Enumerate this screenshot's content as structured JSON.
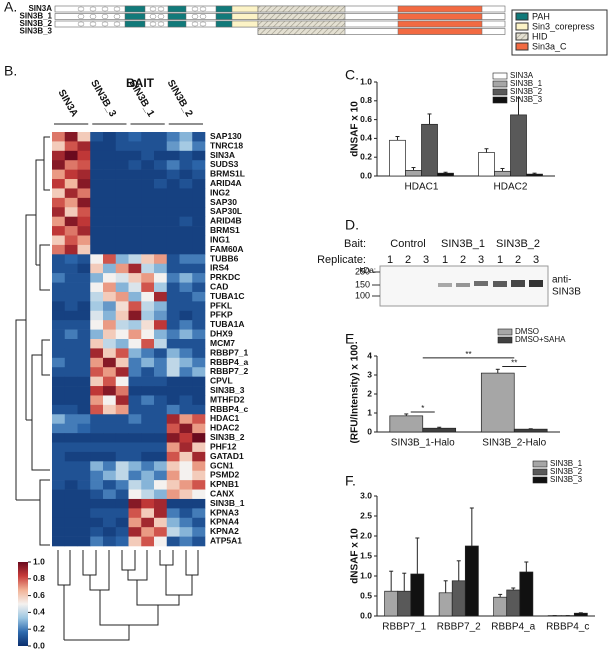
{
  "panel_labels": [
    "A.",
    "B.",
    "C.",
    "D.",
    "E.",
    "F."
  ],
  "domain_diagram": {
    "proteins": [
      "SIN3A",
      "SIN3B_1",
      "SIN3B_2",
      "SIN3B_3"
    ],
    "legend": [
      "PAH",
      "Sin3_corepress",
      "HID",
      "Sin3a_C"
    ]
  },
  "blot": {
    "bait_label": "Bait:",
    "baits": [
      "Control",
      "SIN3B_1",
      "SIN3B_2"
    ],
    "replicate_label": "Replicate:",
    "replicates": [
      1,
      2,
      3
    ],
    "kda_label": "kDa:",
    "markers": [
      250,
      150,
      100
    ],
    "antibody": [
      "anti-",
      "SIN3B"
    ]
  },
  "chart_data": [
    {
      "type": "heatmap",
      "title": "BAIT",
      "column_groups": [
        "SIN3A",
        "SIN3B_3",
        "SIN3B_1",
        "SIN3B_2"
      ],
      "rows": [
        "SAP130",
        "TNRC18",
        "SIN3A",
        "SUDS3",
        "BRMS1L",
        "ARID4A",
        "ING2",
        "SAP30",
        "SAP30L",
        "ARID4B",
        "BRMS1",
        "ING1",
        "FAM60A",
        "TUBB6",
        "IRS4",
        "PRKDC",
        "CAD",
        "TUBA1C",
        "PFKL",
        "PFKP",
        "TUBA1A",
        "DHX9",
        "MCM7",
        "RBBP7_1",
        "RBBP4_a",
        "RBBP7_2",
        "CPVL",
        "SIN3B_3",
        "MTHFD2",
        "RBBP4_c",
        "HDAC1",
        "HDAC2",
        "SIN3B_2",
        "PHF12",
        "GATAD1",
        "GCN1",
        "PSMD2",
        "KPNB1",
        "CANX",
        "SIN3B_1",
        "KPNA3",
        "KPNA4",
        "KPNA2",
        "ATP5A1"
      ],
      "values": [
        [
          0.75,
          0.95,
          0.6,
          0.1,
          0.05,
          0.1,
          0.15,
          0.1,
          0.1,
          0.2,
          0.3,
          0.1
        ],
        [
          0.6,
          0.8,
          0.9,
          0.05,
          0.05,
          0.1,
          0.1,
          0.1,
          0.1,
          0.25,
          0.35,
          0.2
        ],
        [
          0.9,
          1,
          0.85,
          0.05,
          0.05,
          0.05,
          0.05,
          0.1,
          0.05,
          0.05,
          0.1,
          0.05
        ],
        [
          0.95,
          0.75,
          0.8,
          0.05,
          0.05,
          0.05,
          0.1,
          0.05,
          0.1,
          0.2,
          0.1,
          0.15
        ],
        [
          0.7,
          0.85,
          0.9,
          0.05,
          0.05,
          0.05,
          0.05,
          0.05,
          0.05,
          0.1,
          0.05,
          0.1
        ],
        [
          0.85,
          0.65,
          0.95,
          0.05,
          0.05,
          0.05,
          0.05,
          0.05,
          0.1,
          0.05,
          0.1,
          0.05
        ],
        [
          0.6,
          0.9,
          0.75,
          0.05,
          0.05,
          0.05,
          0.05,
          0.05,
          0.05,
          0.05,
          0.05,
          0.05
        ],
        [
          0.8,
          0.7,
          0.95,
          0.05,
          0.05,
          0.05,
          0.05,
          0.05,
          0.05,
          0.05,
          0.05,
          0.05
        ],
        [
          0.9,
          0.6,
          0.8,
          0.05,
          0.05,
          0.05,
          0.05,
          0.05,
          0.05,
          0.05,
          0.05,
          0.05
        ],
        [
          0.7,
          0.95,
          0.85,
          0.05,
          0.05,
          0.05,
          0.05,
          0.05,
          0.05,
          0.05,
          0.1,
          0.05
        ],
        [
          0.85,
          0.75,
          0.9,
          0.05,
          0.05,
          0.05,
          0.05,
          0.05,
          0.05,
          0.05,
          0.05,
          0.05
        ],
        [
          0.6,
          0.8,
          0.7,
          0.05,
          0.05,
          0.05,
          0.05,
          0.05,
          0.05,
          0.05,
          0.05,
          0.05
        ],
        [
          0.75,
          0.9,
          0.6,
          0.05,
          0.05,
          0.05,
          0.05,
          0.05,
          0.05,
          0.05,
          0.05,
          0.05
        ],
        [
          0.1,
          0.15,
          0.1,
          0.5,
          0.8,
          0.3,
          0.4,
          0.6,
          0.7,
          0.1,
          0.2,
          0.2
        ],
        [
          0.1,
          0.1,
          0.05,
          0.6,
          0.3,
          0.7,
          0.9,
          0.4,
          0.3,
          0.1,
          0.1,
          0.1
        ],
        [
          0.2,
          0.1,
          0.1,
          0.3,
          0.5,
          0.45,
          0.6,
          0.7,
          0.5,
          0.2,
          0.3,
          0.2
        ],
        [
          0.1,
          0.1,
          0.1,
          0.5,
          0.7,
          0.3,
          0.45,
          0.8,
          0.35,
          0.1,
          0.2,
          0.1
        ],
        [
          0.1,
          0.1,
          0.1,
          0.4,
          0.6,
          0.7,
          0.3,
          0.5,
          0.9,
          0.1,
          0.1,
          0.2
        ],
        [
          0.05,
          0.1,
          0.05,
          0.35,
          0.25,
          0.55,
          0.8,
          0.4,
          0.3,
          0.1,
          0.1,
          0.1
        ],
        [
          0.05,
          0.05,
          0.05,
          0.45,
          0.3,
          0.6,
          0.95,
          0.35,
          0.25,
          0.1,
          0.05,
          0.1
        ],
        [
          0.1,
          0.1,
          0.1,
          0.5,
          0.7,
          0.4,
          0.35,
          0.55,
          0.85,
          0.1,
          0.2,
          0.1
        ],
        [
          0.1,
          0.2,
          0.1,
          0.3,
          0.6,
          0.5,
          0.7,
          0.5,
          0.3,
          0.2,
          0.3,
          0.2
        ],
        [
          0.1,
          0.1,
          0.1,
          0.6,
          0.4,
          0.3,
          0.5,
          0.8,
          0.4,
          0.1,
          0.1,
          0.1
        ],
        [
          0.1,
          0.1,
          0.1,
          0.9,
          0.6,
          0.8,
          0.3,
          0.2,
          0.1,
          0.3,
          0.2,
          0.1
        ],
        [
          0.2,
          0.1,
          0.1,
          0.7,
          0.95,
          0.6,
          0.2,
          0.3,
          0.2,
          0.4,
          0.3,
          0.2
        ],
        [
          0.1,
          0.1,
          0.1,
          0.8,
          0.7,
          0.9,
          0.2,
          0.1,
          0.2,
          0.4,
          0.2,
          0.3
        ],
        [
          0.05,
          0.05,
          0.05,
          0.6,
          0.8,
          0.5,
          0.1,
          0.1,
          0.1,
          0.05,
          0.05,
          0.05
        ],
        [
          0.05,
          0.05,
          0.05,
          0.85,
          0.95,
          0.75,
          0.05,
          0.05,
          0.05,
          0.05,
          0.05,
          0.05
        ],
        [
          0.05,
          0.05,
          0.05,
          0.7,
          0.5,
          0.9,
          0.1,
          0.2,
          0.1,
          0.05,
          0.1,
          0.05
        ],
        [
          0.1,
          0.1,
          0.05,
          0.8,
          0.6,
          0.7,
          0.1,
          0.1,
          0.1,
          0.2,
          0.1,
          0.1
        ],
        [
          0.3,
          0.2,
          0.2,
          0.1,
          0.1,
          0.1,
          0.2,
          0.1,
          0.1,
          0.9,
          0.7,
          0.8
        ],
        [
          0.2,
          0.2,
          0.15,
          0.1,
          0.1,
          0.1,
          0.1,
          0.1,
          0.1,
          0.8,
          0.95,
          0.7
        ],
        [
          0.05,
          0.05,
          0.05,
          0.05,
          0.05,
          0.05,
          0.05,
          0.05,
          0.05,
          0.95,
          0.85,
          1
        ],
        [
          0.1,
          0.1,
          0.1,
          0.1,
          0.1,
          0.1,
          0.1,
          0.1,
          0.1,
          0.7,
          0.9,
          0.6
        ],
        [
          0.1,
          0.05,
          0.05,
          0.05,
          0.05,
          0.1,
          0.1,
          0.05,
          0.05,
          0.8,
          0.6,
          0.9
        ],
        [
          0.1,
          0.1,
          0.1,
          0.3,
          0.2,
          0.4,
          0.3,
          0.2,
          0.3,
          0.6,
          0.5,
          0.7
        ],
        [
          0.1,
          0.1,
          0.1,
          0.2,
          0.3,
          0.4,
          0.2,
          0.3,
          0.2,
          0.7,
          0.5,
          0.6
        ],
        [
          0.1,
          0.05,
          0.1,
          0.2,
          0.1,
          0.2,
          0.4,
          0.3,
          0.5,
          0.6,
          0.7,
          0.8
        ],
        [
          0.05,
          0.05,
          0.05,
          0.1,
          0.2,
          0.1,
          0.5,
          0.4,
          0.3,
          0.7,
          0.6,
          0.5
        ],
        [
          0.05,
          0.05,
          0.05,
          0.05,
          0.05,
          0.05,
          0.95,
          0.85,
          0.9,
          0.05,
          0.05,
          0.05
        ],
        [
          0.05,
          0.05,
          0.05,
          0.1,
          0.1,
          0.1,
          0.8,
          0.6,
          0.9,
          0.2,
          0.1,
          0.2
        ],
        [
          0.05,
          0.05,
          0.05,
          0.05,
          0.1,
          0.05,
          0.7,
          0.9,
          0.6,
          0.3,
          0.2,
          0.1
        ],
        [
          0.05,
          0.05,
          0.05,
          0.1,
          0.05,
          0.1,
          0.9,
          0.7,
          0.8,
          0.4,
          0.3,
          0.2
        ],
        [
          0.05,
          0.05,
          0.05,
          0.2,
          0.1,
          0.15,
          0.6,
          0.8,
          0.5,
          0.1,
          0.2,
          0.1
        ]
      ],
      "clim": [
        0,
        1
      ],
      "colormap": [
        "#0b2f6e",
        "#2e6aae",
        "#9cc6e2",
        "#f4f1ef",
        "#f2b296",
        "#c83c3a",
        "#6a0a1e"
      ],
      "cticks": [
        {
          "value": 1,
          "label": "1.0"
        },
        {
          "value": 0.8,
          "label": "0.8"
        },
        {
          "value": 0.6,
          "label": "0.6"
        },
        {
          "value": 0.4,
          "label": "0.4"
        },
        {
          "value": 0.2,
          "label": "0.2"
        },
        {
          "value": 0,
          "label": "0.0"
        }
      ]
    },
    {
      "type": "bar",
      "ylabel": "dNSAF x 10",
      "categories": [
        "HDAC1",
        "HDAC2"
      ],
      "series": [
        {
          "name": "SIN3A",
          "color": "#ffffff",
          "values": [
            0.38,
            0.25
          ],
          "errors": [
            0.04,
            0.04
          ]
        },
        {
          "name": "SIN3B_1",
          "color": "#a6a6a6",
          "values": [
            0.06,
            0.05
          ],
          "errors": [
            0.03,
            0.03
          ]
        },
        {
          "name": "SIN3B_2",
          "color": "#595959",
          "values": [
            0.55,
            0.65
          ],
          "errors": [
            0.11,
            0.18
          ]
        },
        {
          "name": "SIN3B_3",
          "color": "#111111",
          "values": [
            0.03,
            0.02
          ],
          "errors": [
            0.01,
            0.01
          ]
        }
      ],
      "ylim": [
        0,
        1
      ],
      "yticks": [
        {
          "value": 0,
          "label": "0.0"
        },
        {
          "value": 0.2,
          "label": "0.2"
        },
        {
          "value": 0.4,
          "label": "0.4"
        },
        {
          "value": 0.6,
          "label": "0.6"
        },
        {
          "value": 0.8,
          "label": "0.8"
        },
        {
          "value": 1,
          "label": "1.0"
        }
      ],
      "legend": "top-right"
    },
    {
      "type": "bar",
      "ylabel": "(RFU/Intensity) x 100",
      "categories": [
        "SIN3B_1-Halo",
        "SIN3B_2-Halo"
      ],
      "series": [
        {
          "name": "DMSO",
          "color": "#a6a6a6",
          "values": [
            0.85,
            3.1
          ],
          "errors": [
            0.1,
            0.2
          ]
        },
        {
          "name": "DMSO+SAHA",
          "color": "#404040",
          "values": [
            0.2,
            0.15
          ],
          "errors": [
            0.05,
            0.02
          ]
        }
      ],
      "ylim": [
        0,
        4
      ],
      "yticks": [
        0,
        1,
        2,
        3,
        4
      ],
      "legend": "top-right",
      "annotations": [
        "*",
        "**",
        "**"
      ]
    },
    {
      "type": "bar",
      "ylabel": "dNSAF x 10",
      "categories": [
        "RBBP7_1",
        "RBBP7_2",
        "RBBP4_a",
        "RBBP4_c"
      ],
      "series": [
        {
          "name": "SIN3B_1",
          "color": "#a6a6a6",
          "values": [
            0.62,
            0.58,
            0.47,
            0.01
          ],
          "errors": [
            0.5,
            0.3,
            0.07,
            0
          ]
        },
        {
          "name": "SIN3B_2",
          "color": "#595959",
          "values": [
            0.62,
            0.88,
            0.65,
            0.01
          ],
          "errors": [
            0.45,
            0.5,
            0.05,
            0
          ]
        },
        {
          "name": "SIN3B_3",
          "color": "#111111",
          "values": [
            1.05,
            1.75,
            1.1,
            0.07
          ],
          "errors": [
            0.9,
            0.95,
            0.25,
            0.01
          ]
        }
      ],
      "ylim": [
        0,
        3
      ],
      "yticks": [
        {
          "value": 0,
          "label": "0.0"
        },
        {
          "value": 0.5,
          "label": "0.5"
        },
        {
          "value": 1,
          "label": "1.0"
        },
        {
          "value": 1.5,
          "label": "1.5"
        },
        {
          "value": 2,
          "label": "2.0"
        },
        {
          "value": 2.5,
          "label": "2.5"
        },
        {
          "value": 3,
          "label": "3.0"
        }
      ],
      "legend": "top-right"
    }
  ]
}
